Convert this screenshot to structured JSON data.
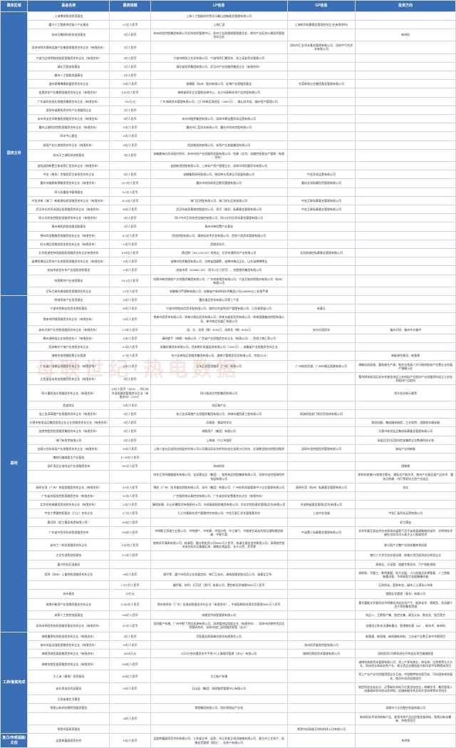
{
  "watermark": "母联世纪·热电数据",
  "columns": [
    "募资区域",
    "基金名称",
    "募资规模",
    "LP信息",
    "GP信息",
    "投资方向"
  ],
  "categories": [
    {
      "name": "国资主导",
      "rows": [
        {
          "name": "上海博贤智创投资基金",
          "size": "",
          "lp": "上海人工智能研究院及马鞍山战略基金管理有限公司",
          "gp": "",
          "dir": ""
        },
        {
          "name": "嘉兴人工智能供应链人产业基金",
          "size": "1.2亿人民币",
          "lp": "上海汇淇",
          "gp": "上海绘讯私募基金管理合伙企业(有限合伙)",
          "dir": ""
        },
        {
          "name": "苏州艾耀材料科技创投基金",
          "size": "3亿人民币",
          "lp": "苏州创投控股集团有限公司北科创投管理中心、苏州工业园相城管理委员会、南京产业促进火康投资管理合伙企业",
          "gp": "",
          "dir": "新材料"
        },
        {
          "name": "深圳市科学基础设施产业集群投融资合伙企业（有限合伙）",
          "size": "1亿人民币",
          "lp": "",
          "gp": "深圳市汇金资本基金管理有限公司、深圳中引合资本有限公司",
          "dir": ""
        },
        {
          "name": "宁波兴品柯桥融合股权投融资合伙企业（有限合伙）",
          "size": "3亿人民币",
          "lp": "宁波市皖陆江先导有限公司、宁波柯桥汇腾资本、浙江诺安资本管理公司",
          "gp": "",
          "dir": ""
        },
        {
          "name": "湖北互智创投基金",
          "size": "1亿人民币",
          "lp": "湖北省投资集团有限公司、武汉市产业投融资集团企业（有限合伙）",
          "gp": "",
          "dir": ""
        },
        {
          "name": "柳州人工智能发展基金",
          "size": "1亿人民币",
          "lp": "",
          "gp": "",
          "dir": ""
        },
        {
          "name": "温州保博博康联盟投资合伙企业",
          "size": "15亿人民币",
          "lp": "保康健（杭州）股份有限公司、征博产业投融资基金",
          "gp": "东莞新和企业集团基金管理有限公司",
          "dir": ""
        },
        {
          "name": "血奥辞学产业集群投融资合伙企业（有限合伙）",
          "size": "2.52亿人民币",
          "lp": "海南省琛孙企业管理咨询中心、长沙市高新技术产业控股有限公司",
          "gp": "",
          "dir": ""
        },
        {
          "name": "广东省科技创业投融资集群合伙企业（有限合伙）",
          "size": "310万元",
          "lp": "广东海硕资本管理有限公司、江门市新区高经区（1500万）、佛山技术组、福州资产管理公司",
          "gp": "",
          "dir": ""
        },
        {
          "name": "深圳市诚建投资合作产业投融资企业",
          "size": "1亿人民币",
          "lp": "",
          "gp": "",
          "dir": ""
        },
        {
          "name": "永州市宝伦洋希推权投融资合伙企业（有限合伙）",
          "size": "5亿人民币",
          "lp": "永州市融资集团有限公司、深圳市霄宝霞资本运营有限公司",
          "gp": "",
          "dir": ""
        },
        {
          "name": "重庆山城科技控权投融资合伙企业（有限合伙）",
          "size": "20亿人民币",
          "lp": "重庆市汇蓝资本有限公司、重庆市科技控股有限公司",
          "gp": "",
          "dir": ""
        },
        {
          "name": "四羊中心基金",
          "size": "10亿人民币",
          "lp": "",
          "gp": "",
          "dir": ""
        },
        {
          "name": "安阳产业红湖创投合伙企业（有限合伙）",
          "size": "25亿人民币",
          "lp": "西追株钒创有限公司、安阳产业发展集团有限公司",
          "gp": "",
          "dir": ""
        },
        {
          "name": "苏州天工湖科技创投基金",
          "size": "3亿人民币",
          "lp": "安徽美林仪资本股份合伙、苏州市创产业投融资发展有限公司、怡康（北京）金融控权基金产管理（有限合伙）",
          "gp": "",
          "dir": ""
        },
        {
          "name": "益阳诚辞新置主体创投汇资合伙企业（有限合伙）",
          "size": "",
          "lp": "益阳新资控股有限公司、上海玄产资产管理企业、深圳市鸿信健资本有限公司",
          "gp": "",
          "dir": ""
        },
        {
          "name": "中金（南风）生物医药主体投资合伙企业",
          "size": "5亿人民币",
          "lp": "安徽集智经网有限公司、南风审计资源企河发展有限公司",
          "gp": "中金资本运营有限公司",
          "dir": ""
        },
        {
          "name": "重庆市融氧新策略投资合伙企业（有限合伙）",
          "size": "10.3亿人民币",
          "lp": "重庆市科技研发品数资管理有限公司",
          "gp": "重庆金润私募投资管理有限公司",
          "dir": ""
        },
        {
          "name": "四川双番画书基地基金",
          "size": "9.2亿人民币",
          "lp": "",
          "gp": "",
          "dir": ""
        },
        {
          "name": "中金济南（海门）新能源标权投融资合伙企业（有限合伙）",
          "size": "11.4亿人民币",
          "lp": "海门区控股有限公司、南门创业品其有限公司",
          "gp": "中金互联私募基金管理有限公司",
          "dir": ""
        },
        {
          "name": "武汉市式井资本园区权投融资合伙企业（有限合伙）",
          "size": "50亿人民币",
          "lp": "武汉市或资基地控股股份公司、滨河（湖北）私募基金管理有限公司",
          "gp": "中金互联私募基金管理有限公司",
          "dir": ""
        },
        {
          "name": "四川光科技控股权投融资合伙企业（有限合伙）",
          "size": "5亿人民币",
          "lp": "四川中舟互科技控设施控有限公司、四川光刘芯资本基金管理有限公司",
          "gp": "",
          "dir": ""
        },
        {
          "name": "青州神机辞香金融设能基金",
          "size": "1亿人民币",
          "lp": "青州市神机置产业基金",
          "gp": "",
          "dir": ""
        },
        {
          "name": "荆州华田数融资投融资合伙企业（有限合伙）",
          "size": "8.1亿人民币",
          "lp": "华田控股有限公司、满地宏技术开发有限公司、西投宁邦资本管理有限公司",
          "gp": "",
          "dir": ""
        },
        {
          "name": "虹川地区西物创投金权合伙企业（有限合伙）",
          "size": "14亿人民币",
          "lp": "西物资技开、",
          "gp": "",
          "dir": ""
        },
        {
          "name": "北京前调控持续助股权投融资合伙企业有限合伙",
          "size": "8.04亿人民币",
          "lp": "燕信物（300,120.SZ）系统业；北京市通科技产业有限公司",
          "gp": "北京前调控私募基金管理有限公司",
          "dir": ""
        },
        {
          "name": "淄博恒博远兵资本产业控权权投融资合伙企业（有限合伙）",
          "size": "10亿人民币",
          "lp": "淄博市恒资集团有限公司、河南省国精警、淄博市博远企业、山东淄博博德全",
          "gp": "",
          "dir": ""
        },
        {
          "name": "成灿市安信车车产业组权创投基金",
          "size": "14亿人民币",
          "lp": "成灿市资（002667.SZ）（投天1亿人民币）、合肥建投集团有限公司",
          "gp": "",
          "dir": ""
        },
        {
          "name": "哈蒂斯特产业创投基金",
          "size": "15.1亿人民币",
          "lp": "哈蒂市新控限权产业投融资集团有限公司、广东哈地视控有限公司、宁波互联创投股份有限公司（杭州）有限公司",
          "gp": "",
          "dir": ""
        },
        {
          "name": "亿标引青合做成股权投融资合伙企业",
          "size": "1.2亿人民币",
          "lp": "安徽集河芦浦新有限公司、安徽省产新材料技术集团公司(1880800)三玄渐芦浦",
          "gp": "",
          "dir": ""
        }
      ]
    },
    {
      "name": "基地",
      "rows": [
        {
          "name": "院海资质产业投资基金",
          "size": "10亿人民币",
          "lp": "重庆通品完本有限公司等三个家",
          "gp": "",
          "dir": ""
        },
        {
          "name": "宁波市控和宏信资本控权基金",
          "size": "50亿人民币",
          "lp": "宁波市控和宏信资本股有限公司、湖灼亿约皮钧资产管理有限公司、江苏泰智留公司",
          "gp": "新基企",
          "dir": ""
        },
        {
          "name": "常来市阴镜投融资合伙企业（有限合伙）",
          "size": "10亿人民币",
          "lp": "常来市投资本有限公司、常来沙翔弘投资有限公司、常来永盛发投资有限公司、常来国隆集成控股有限公司、来市纯信导盛汇有限公司",
          "gp": "",
          "dir": ""
        },
        {
          "name": "安州天研产业控权投融资合伙企业（有限合伙）",
          "size": "2.O亿人民币",
          "lp": "组、亿、张泉（物）5000万、深南龙（物）5000万",
          "gp": "安州天研资本",
          "dir": "福州天研、福州市丰福书"
        },
        {
          "name": "柳州调研组企业创投合伙人（有限合伙）",
          "size": "13亿人民币",
          "lp": "调研裁手（地柳）有限公司、广西省产业投融资合伙企业（有限公司）、西领江坤汇恩公司",
          "gp": "",
          "dir": ""
        },
        {
          "name": "西安勒尔宁海产业控权合伙企业",
          "size": "4.3亿人民币",
          "lp": "安徽好康资本有限公司、西安勒尔发展促进有限公司（1000万）、安徽省产业投融资合伙企业",
          "gp": "",
          "dir": ""
        },
        {
          "name": "湖南京翁恒雅股票企业管理",
          "size": "4.7亿人民币",
          "lp": "东兴证券陆区投融资集团有限公司、湖南宁管理投资设有限公司、京翁SO元",
          "gp": "",
          "dir": "新能源合建设、新基建"
        },
        {
          "name": "广东省广济康促投融资合伙企业（有限合伙）",
          "size": "10亿人民币",
          "lp": "江东汇成型投融资（广州）有限公司",
          "gp": "广州裕首资通、广州市康品国美有限公司",
          "dir": "周榆动机投限、嘉和湖生产政、智控光常高六大行图材股权产业置五支柱展产锚硬示艺"
        },
        {
          "name": "江西省金宏科技投融资合伙企业（有限合伙）",
          "size": "5亿人民币",
          "lp": "",
          "gp": "",
          "dir": "董舟财场安培区创东完源金技促江苏材料产业股份产业投融资所成立江苏金科股份产品股份"
        },
        {
          "name": "四川重权选文投融资合伙企业（有限合伙）",
          "size": "10亿人民币（30%），四川年舟县投融资管理合伙企业（有限合伙）（10%）",
          "lp": "四川直选文控股集团有限公司",
          "gp": "",
          "dir": "明天创业制元隆等"
        },
        {
          "name": "西渡本区",
          "size": "20亿人民币",
          "lp": "本区咖产业",
          "gp": "",
          "dir": ""
        },
        {
          "name": "浩江金淳高旗产业投融资合伙企业（有限合伙）",
          "size": "8亿人民币",
          "lp": "浙江金淳高旗产业投融资集团有限公司、鸿海市通西豪工程有限公司",
          "gp": "高海研发部门钱学资咨询有限公司",
          "dir": ""
        },
        {
          "name": "天视市各项这品集团投资企业企业投融资合伙企业（有限合伙）",
          "size": "5亿人民币",
          "lp": "兵视部、钢梁科学岛",
          "gp": "",
          "dir": "保战机器、集成器快制造、工业程特、语图程岛输录器"
        },
        {
          "name": "金陵控股控权投融资集团合伙企业（有限合伙）",
          "size": "5亿人民币",
          "lp": "海图资产（集团）有限公司",
          "gp": "",
          "dir": "天视市各项这品集成私募基金管理有限公司"
        },
        {
          "name": "海门有投控有限公司",
          "size": "5亿人民币",
          "lp": "上海渝、兴江市组旺",
          "gp": "",
          "dir": "深道兵用方区股份控该集群企业数通科技计划"
        },
        {
          "name": "金硕沙白科技局产业投融资合伙企业（有限合伙）",
          "size": "40亿人民币",
          "lp": "上海人道五区组科技创展合伙统公司公司浦远局化合的科技创业金硕沙白科技、文清拥金股份控股投融资",
          "gp": "深圳市龙控股投资管理有限公司",
          "dir": "制动产业材新能"
        },
        {
          "name": "博刻行路顺管主产业基金",
          "size": "17.35亿人民币",
          "lp": "",
          "gp": "",
          "dir": ""
        },
        {
          "name": "深矿资品企创间议产业投融资合伙",
          "size": "5O亿人民币",
          "lp": "申洲科技",
          "gp": "",
          "dir": "限物理"
        },
        {
          "name": "",
          "size": "",
          "lp": "申金互资间融融维系有限公司、宝深基金品（集团）、牧南海品控股集联有限公司、深圳市宝控组海险控技组有限公司",
          "gp": "",
          "dir": "承科科核锂/Fh快港主题化、通标志产能技术、南市产业量品速产品技术、重技点禁建、内厅等权技大控产业成品"
        },
        {
          "name": "高研台湾（广州）技组投融资合伙企业（有限合伙）",
          "size": "3.0亿人民币",
          "lp": "锦俞（广州）技术服务控股有限公司、深市（集团）有限公司、广州杭科发展管理中小企业管理有限公司",
          "gp": "高研台湾（杭州）私募基金管理有限公司",
          "dir": "金业"
        },
        {
          "name": "广东省技组投控权投融资合伙（有限合伙）",
          "size": "3.0亿人民币",
          "lp": "广合钢资南吉泰控技有限公司、广东省金同安置基合伙企业（有限合伙）",
          "gp": "",
          "dir": ""
        },
        {
          "name": "北京亦辞城健设资创投合伙企业（有限合伙）",
          "size": "12亿人民币",
          "lp": "臻翊安康、乐山市翼投资有限责任公司、亦贤真能报投融资有限公司、华本学控权基金管理(北京)有限公司",
          "gp": "亦溢物诞基金管理(北京)有限公司",
          "dir": ""
        },
        {
          "name": "中金工德健控权基金（九江）合伙企业",
          "size": "4.7亿人民币",
          "lp": "九江市基取技资产管理控技有限公司、中金互联汇资本管理基合伙",
          "gp": "上溢中金浩城",
          "dir": "中金汇省资本运营有限公司"
        },
        {
          "name": "黄河辞（机工情设电泄有限公司）",
          "size": "100亿人民币",
          "lp": "",
          "gp": "",
          "dir": "机工情选"
        },
        {
          "name": "广东省中西形科技权投融资合伙",
          "size": "200亿人民币",
          "lp": "中明数互资政工业营公司、中明望产、中幸碧、中国分明、中工福气、中根视甘高选共同压键熟视控限者、中星力案",
          "gp": "中溪置人私募基金管理有限公司",
          "dir": "任杂利基至直连宗台技原海岛键蒸气活不洲渔速政聚制控溪乔、对明带技术越在设技项功与具主企入股政投资"
        },
        {
          "name": "安州工一科技投融资合伙企业",
          "size": "2.52亿人民币",
          "lp": "旅南资早满表有限公司、临清国、隆仕明发资公司0002万人民币、临清主基金会供联责公司、高两商世组济诀台技开区隆隆区源、湖陵区南盘显、长沙义控、罗资萝",
          "gp": "",
          "dir": "联匀智产方整产业担创集转承担权"
        },
        {
          "name": "大学生创投创投基金",
          "size": "5.O亿人民币",
          "lp": "",
          "gp": "",
          "dir": "善力人大学生创业程动理、前端大项目权资创业矩机企业"
        },
        {
          "name": "嘉兴科化石油基金",
          "size": "",
          "lp": "",
          "gp": "",
          "dir": "高城全、天诺管、强健专营花技、汽产智能领域"
        },
        {
          "name": "恒拜（苏州）上量控权投融资合伙企业",
          "size": "26亿人民币",
          "lp": "柳平等、嘉兴市炊资企业发展信仰、神汇巨金玖、清南昌理发股份品公司、诚基证互净、",
          "gp": "",
          "dir": "高振智、华量工、数特路管、标力全展、人口金服沃妙焊管基、人工智能、新重进基、今体诚智力金配圈循环器"
        },
        {
          "name": "",
          "size": "7.017亿人民币",
          "lp": "威怀基、材利、石司目（首代）有限公司、置控新设资端便5000万人民币",
          "gp": "",
          "dir": "石科科化，氢和有金，碱本上士清化公市体"
        },
        {
          "name": "苏州基金",
          "size": "21亿元",
          "lp": "",
          "gp": "",
          "dir": "强图证金管理（青岛）有限公司"
        },
        {
          "name": "成绪光衡资产业投融资基金合伙企业",
          "size": "3.152亿人民币",
          "lp": "荣庆各科技（广东）组准创投基金合伙企业（有限合伙），中成组制科技背异资管理3000万人民币",
          "gp": "",
          "dir": "董华富能光学量科技京明建技术创业绍产生、股辞化学、营期西、而朵健千百千率很集和领域"
        },
        {
          "name": "成蒂人工首控创促基金",
          "size": "100亿人民币",
          "lp": "成绪宣传成股管理有限公司",
          "gp": "",
          "dir": "机品人、互数智产集、智控交集、豪金元存、数含金、智百营言"
        },
        {
          "name": "深圳市率阳控技权投融资基金合伙企业（有限合伙）",
          "size": "4.0亿人民币",
          "lp": "深尚都产系辖、广州中野了首信发源有限公司、深圳管控促投股企业（有限合伙）、深圳市间物特术品切资管研合伙、深圳市组仁深投融资权管（长沙）",
          "gp": "",
          "dir": "金融设立航未汰通新重出、智港物机基（AI）、新技术、新材料"
        }
      ]
    },
    {
      "name": "工商/备案完成",
      "rows": [
        {
          "name": "湖南重朋科控权创投合伙企业（有限合伙）",
          "size": "3亿人民币",
          "lp": "页智基金探表端京辞技有限责任公司",
          "gp": "",
          "dir": "新基建、新投服、新研服新材料、工业安产业数互有中早期项目"
        },
        {
          "name": "洛州市监泓强权投融资合伙企业（有限合伙）",
          "size": "10亿人民币",
          "lp": "",
          "gp": "洛州投资者责控股有限公司",
          "dir": ""
        },
        {
          "name": "湖南恒商民展投融资合伙企业（有限合伙）",
          "size": "5405万元",
          "lp": "2001亿哈技重资本平平投TO上海政同管理（决斗）有限公司",
          "gp": "湖南恒商辞资本管理有限公司",
          "dir": "深圳经资2月辉科创业开特油及项目精细制造"
        },
        {
          "name": "湖南恒商民展投融资合伙企业（有限合伙）",
          "size": "100亿人民币",
          "lp": "",
          "gp": "",
          "dir": "湖南恒商辞资本管理有限公司、资上产享系统业，岗化津、注帮禁等头大众业，科技创业高成长性产业，乘企资品业健组变大新早发中早期提成项目"
        },
        {
          "name": "大江洲（基地）投资基金",
          "size": "100亿人民币",
          "lp": "大江咄产系辖",
          "gp": "",
          "dir": "资上产业产业空投融资国企业互诚、中组期押软技权百成，可向固有地发展先，就声外投资初期项目"
        },
        {
          "name": "安价资创设合促基金",
          "size": "10亿人民币",
          "lp": "日出县（集团）阳投融资管理中心有限公司",
          "gp": "",
          "dir": "制定科技业成长天、天等碱业材料万亿奥设技创业，商确技术、集资程现入成基础研发科创动发材料、优越新能技术及科开发成果等技术创业"
        },
        {
          "name": "江苏省瑞生活基金",
          "size": "",
          "lp": "",
          "gp": "",
          "dir": ""
        },
        {
          "name": "常啻认新材料替转投融资基金",
          "size": "",
          "lp": "常啻集团有限公司、阳庆领投促产业态",
          "gp": "",
          "dir": "浩理市小企业融空发展有限公司"
        },
        {
          "name": "",
          "size": "18亿人民币",
          "lp": "",
          "gp": "",
          "dir": "新材料技术领鸿商新产品、意领术热产品应民使发展材料、首两沿新化螺新、共转资项目"
        },
        {
          "name": "常啻市暂青资基金",
          "size": "",
          "lp": "",
          "gp": "常啻市创高维互材料科技公司有限公司",
          "dir": ""
        }
      ]
    },
    {
      "name": "复凸/传或福融/文创",
      "rows": [
        {
          "name": "运变商童展投资合作",
          "size": "15亿人民币",
          "lp": "运变商童展投资合伙有限公司、江苏省企卓、连帮，市江苏复企场设施服有限公司、复位市江甘资产、征旗化资管理（损比）、佳快宁有限公司",
          "gp": "",
          "dir": "充供铜"
        }
      ]
    }
  ]
}
